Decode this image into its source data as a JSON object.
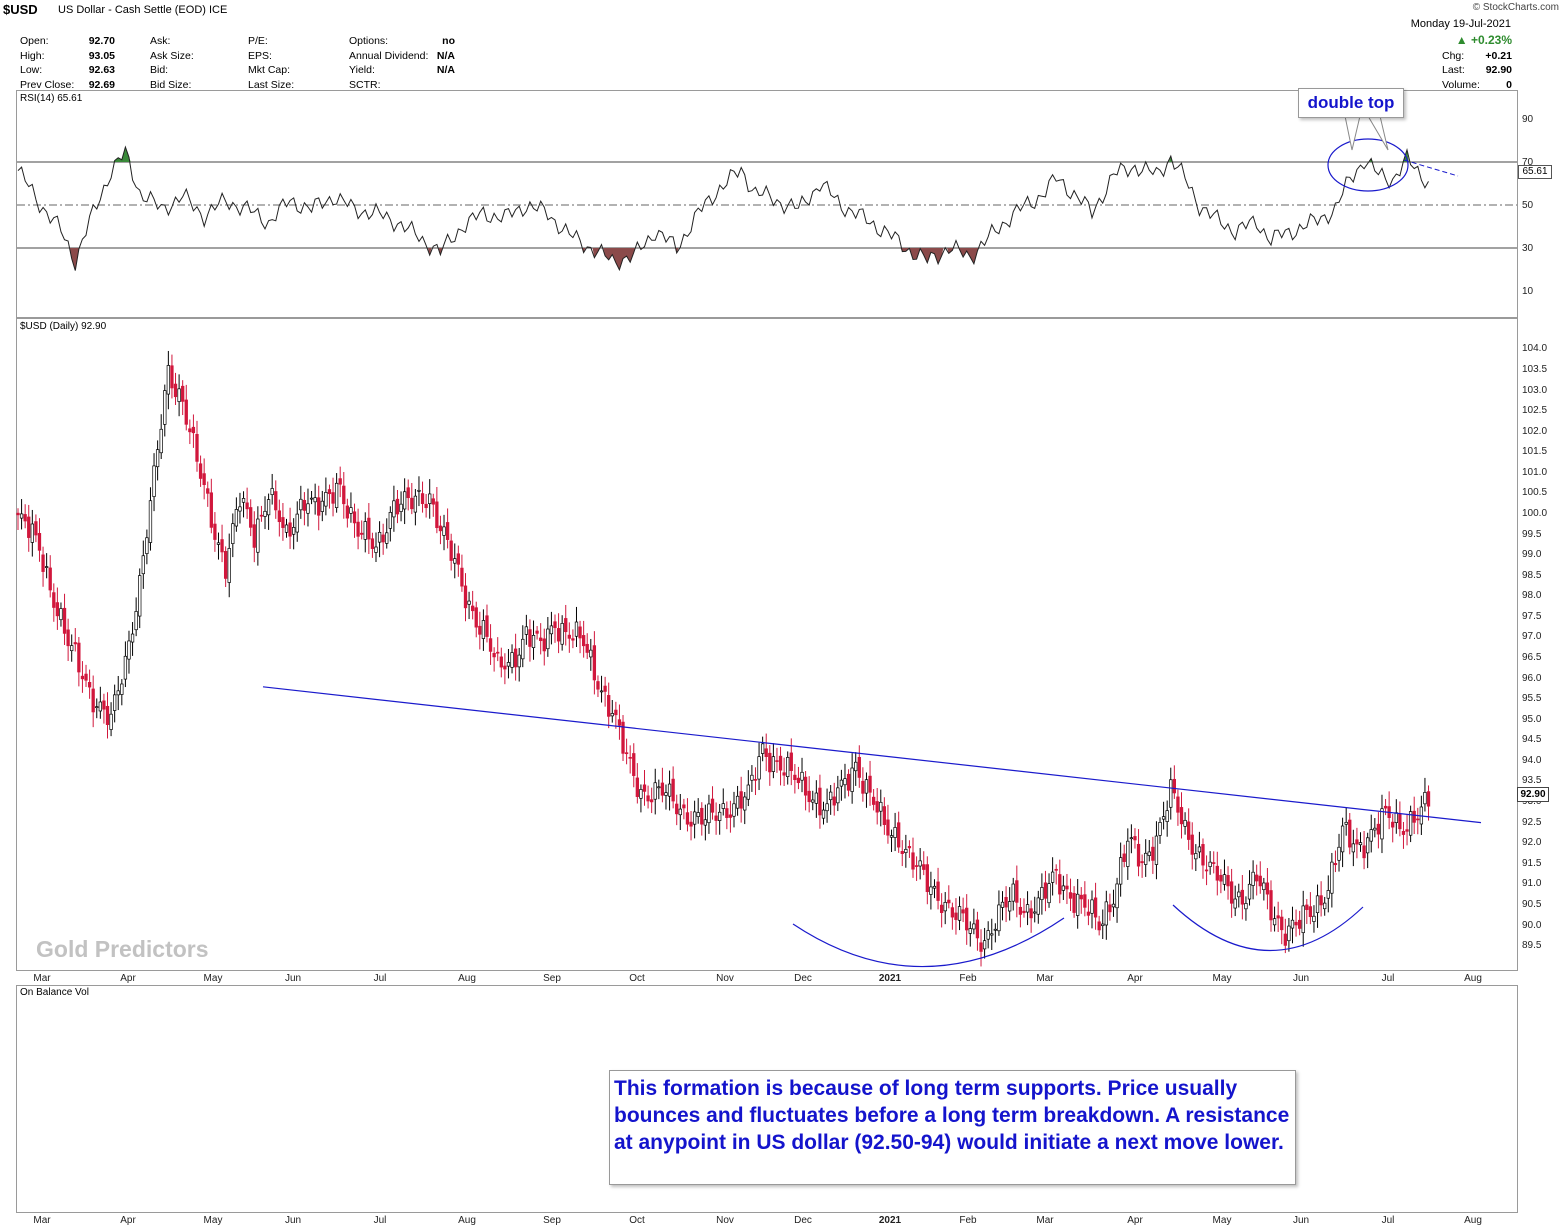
{
  "header": {
    "symbol": "$USD",
    "description": "US Dollar - Cash Settle (EOD) ICE",
    "brand": "© StockCharts.com",
    "date": "Monday  19-Jul-2021",
    "change_pct": "▲ +0.23%",
    "chg_label": "Chg:",
    "chg_value": "+0.21",
    "last_label": "Last:",
    "last_value": "92.90",
    "volume_label": "Volume:",
    "volume_value": "0",
    "quote_cols": [
      [
        {
          "label": "Open:",
          "value": "92.70"
        },
        {
          "label": "High:",
          "value": "93.05"
        },
        {
          "label": "Low:",
          "value": "92.63"
        },
        {
          "label": "Prev Close:",
          "value": "92.69"
        }
      ],
      [
        {
          "label": "Ask:",
          "value": ""
        },
        {
          "label": "Ask Size:",
          "value": ""
        },
        {
          "label": "Bid:",
          "value": ""
        },
        {
          "label": "Bid Size:",
          "value": ""
        }
      ],
      [
        {
          "label": "P/E:",
          "value": ""
        },
        {
          "label": "EPS:",
          "value": ""
        },
        {
          "label": "Mkt Cap:",
          "value": ""
        },
        {
          "label": "Last Size:",
          "value": ""
        }
      ],
      [
        {
          "label": "Options:",
          "value": "no"
        },
        {
          "label": "Annual Dividend:",
          "value": "N/A"
        },
        {
          "label": "Yield:",
          "value": "N/A"
        },
        {
          "label": "SCTR:",
          "value": ""
        }
      ]
    ]
  },
  "rsi_panel": {
    "label": "RSI(14) 65.61",
    "current_value": "65.61",
    "levels": [
      "90",
      "70",
      "50",
      "30",
      "10"
    ]
  },
  "price_panel": {
    "label": "$USD (Daily) 92.90",
    "last_price_box": "92.90",
    "y_ticks": [
      "104.0",
      "103.5",
      "103.0",
      "102.5",
      "102.0",
      "101.5",
      "101.0",
      "100.5",
      "100.0",
      "99.5",
      "99.0",
      "98.5",
      "98.0",
      "97.5",
      "97.0",
      "96.5",
      "96.0",
      "95.5",
      "95.0",
      "94.5",
      "94.0",
      "93.5",
      "93.0",
      "92.5",
      "92.0",
      "91.5",
      "91.0",
      "90.5",
      "90.0",
      "89.5"
    ]
  },
  "obv_panel": {
    "label": "On Balance Vol"
  },
  "months": [
    "Mar",
    "Apr",
    "May",
    "Jun",
    "Jul",
    "Aug",
    "Sep",
    "Oct",
    "Nov",
    "Dec",
    "2021",
    "Feb",
    "Mar",
    "Apr",
    "May",
    "Jun",
    "Jul",
    "Aug"
  ],
  "annotations": {
    "double_top": "double top",
    "note": "This formation is because of long term supports. Price usually bounces and fluctuates before a long term breakdown. A resistance at anypoint in US dollar (92.50-94) would initiate a next move lower.",
    "watermark": "Gold Predictors"
  },
  "colors": {
    "up": "#ffffff",
    "down": "#d1173c",
    "trendline": "#1a1acc",
    "rsi_line": "#222222",
    "overbought_fill": "#3a8a3a",
    "oversold_fill": "#8b4a4a"
  },
  "chart_data": {
    "type": "candlestick",
    "title": "$USD (Daily) 92.90",
    "period": "Mar 2020 – Jul 2021",
    "ylim": [
      89.3,
      104.0
    ],
    "x_months": [
      "Mar",
      "Apr",
      "May",
      "Jun",
      "Jul",
      "Aug",
      "Sep",
      "Oct",
      "Nov",
      "Dec",
      "2021",
      "Feb",
      "Mar",
      "Apr",
      "May",
      "Jun",
      "Jul",
      "Aug"
    ],
    "price_path": [
      [
        0,
        99.9
      ],
      [
        6,
        99.2
      ],
      [
        14,
        96.8
      ],
      [
        21,
        95.6
      ],
      [
        26,
        94.9
      ],
      [
        30,
        96.4
      ],
      [
        34,
        98.4
      ],
      [
        38,
        100.8
      ],
      [
        42,
        103.5
      ],
      [
        46,
        102.8
      ],
      [
        50,
        101.2
      ],
      [
        55,
        99.6
      ],
      [
        58,
        98.8
      ],
      [
        62,
        100.3
      ],
      [
        66,
        99.5
      ],
      [
        70,
        100.6
      ],
      [
        75,
        99.3
      ],
      [
        80,
        100.5
      ],
      [
        85,
        100.1
      ],
      [
        90,
        100.7
      ],
      [
        95,
        99.6
      ],
      [
        100,
        99.1
      ],
      [
        105,
        100.3
      ],
      [
        110,
        100.2
      ],
      [
        115,
        100.5
      ],
      [
        120,
        99.2
      ],
      [
        125,
        98.0
      ],
      [
        130,
        97.2
      ],
      [
        134,
        96.2
      ],
      [
        138,
        96.5
      ],
      [
        142,
        97.1
      ],
      [
        146,
        96.7
      ],
      [
        150,
        97.4
      ],
      [
        154,
        97.1
      ],
      [
        158,
        96.8
      ],
      [
        162,
        96.0
      ],
      [
        166,
        95.2
      ],
      [
        170,
        94.0
      ],
      [
        174,
        93.3
      ],
      [
        180,
        93.2
      ],
      [
        186,
        92.8
      ],
      [
        192,
        92.5
      ],
      [
        198,
        92.9
      ],
      [
        204,
        93.1
      ],
      [
        208,
        94.3
      ],
      [
        212,
        94.0
      ],
      [
        216,
        93.6
      ],
      [
        222,
        93.2
      ],
      [
        226,
        92.8
      ],
      [
        230,
        93.3
      ],
      [
        234,
        94.0
      ],
      [
        238,
        93.1
      ],
      [
        242,
        92.4
      ],
      [
        246,
        92.2
      ],
      [
        250,
        91.5
      ],
      [
        254,
        91.0
      ],
      [
        258,
        90.7
      ],
      [
        262,
        90.2
      ],
      [
        266,
        89.9
      ],
      [
        270,
        89.7
      ],
      [
        274,
        90.2
      ],
      [
        278,
        90.7
      ],
      [
        282,
        90.4
      ],
      [
        286,
        90.6
      ],
      [
        290,
        91.2
      ],
      [
        294,
        90.8
      ],
      [
        298,
        90.4
      ],
      [
        302,
        90.0
      ],
      [
        306,
        90.8
      ],
      [
        310,
        92.0
      ],
      [
        314,
        91.5
      ],
      [
        318,
        92.2
      ],
      [
        322,
        93.2
      ],
      [
        326,
        92.3
      ],
      [
        330,
        91.8
      ],
      [
        334,
        91.2
      ],
      [
        338,
        90.9
      ],
      [
        342,
        90.7
      ],
      [
        346,
        91.1
      ],
      [
        350,
        90.4
      ],
      [
        354,
        89.9
      ],
      [
        358,
        90.0
      ],
      [
        362,
        90.4
      ],
      [
        366,
        91.0
      ],
      [
        370,
        92.2
      ],
      [
        374,
        91.9
      ],
      [
        378,
        92.3
      ],
      [
        382,
        92.6
      ],
      [
        386,
        92.4
      ],
      [
        390,
        92.7
      ],
      [
        394,
        92.9
      ]
    ],
    "resistance_trendline": {
      "start": [
        "Jun 2020",
        95.8
      ],
      "end": [
        "Aug 2021",
        92.5
      ]
    },
    "rsi": {
      "period": 14,
      "last": 65.61,
      "ylim": [
        0,
        100
      ],
      "levels": [
        30,
        50,
        70
      ],
      "path": [
        [
          0,
          66
        ],
        [
          6,
          51
        ],
        [
          12,
          38
        ],
        [
          16,
          24
        ],
        [
          20,
          42
        ],
        [
          26,
          66
        ],
        [
          30,
          74
        ],
        [
          34,
          56
        ],
        [
          40,
          48
        ],
        [
          46,
          54
        ],
        [
          52,
          45
        ],
        [
          58,
          52
        ],
        [
          64,
          48
        ],
        [
          70,
          42
        ],
        [
          76,
          52
        ],
        [
          82,
          48
        ],
        [
          88,
          54
        ],
        [
          94,
          48
        ],
        [
          100,
          46
        ],
        [
          106,
          42
        ],
        [
          112,
          35
        ],
        [
          118,
          28
        ],
        [
          124,
          40
        ],
        [
          130,
          46
        ],
        [
          136,
          44
        ],
        [
          142,
          50
        ],
        [
          148,
          46
        ],
        [
          154,
          36
        ],
        [
          160,
          30
        ],
        [
          166,
          24
        ],
        [
          172,
          26
        ],
        [
          178,
          38
        ],
        [
          184,
          30
        ],
        [
          190,
          46
        ],
        [
          196,
          58
        ],
        [
          202,
          66
        ],
        [
          206,
          56
        ],
        [
          212,
          52
        ],
        [
          218,
          48
        ],
        [
          224,
          60
        ],
        [
          230,
          50
        ],
        [
          236,
          44
        ],
        [
          242,
          38
        ],
        [
          248,
          30
        ],
        [
          254,
          24
        ],
        [
          260,
          30
        ],
        [
          266,
          26
        ],
        [
          272,
          36
        ],
        [
          278,
          46
        ],
        [
          284,
          52
        ],
        [
          290,
          62
        ],
        [
          296,
          54
        ],
        [
          300,
          46
        ],
        [
          306,
          64
        ],
        [
          312,
          68
        ],
        [
          318,
          64
        ],
        [
          322,
          72
        ],
        [
          326,
          62
        ],
        [
          330,
          50
        ],
        [
          334,
          44
        ],
        [
          340,
          38
        ],
        [
          346,
          42
        ],
        [
          350,
          34
        ],
        [
          356,
          38
        ],
        [
          362,
          42
        ],
        [
          368,
          48
        ],
        [
          372,
          62
        ],
        [
          376,
          71
        ],
        [
          380,
          64
        ],
        [
          384,
          62
        ],
        [
          388,
          71
        ],
        [
          392,
          64
        ],
        [
          396,
          58
        ],
        [
          400,
          62
        ],
        [
          404,
          65.61
        ]
      ],
      "double_top_peaks": [
        71,
        72
      ]
    }
  }
}
